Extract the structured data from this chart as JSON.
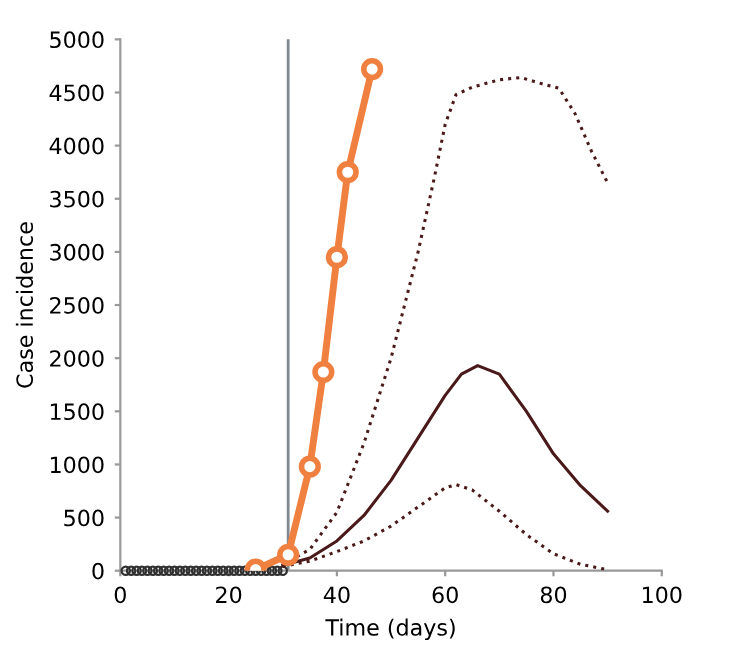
{
  "chart_data": {
    "type": "line",
    "xlabel": "Time (days)",
    "ylabel": "Case incidence",
    "xlim": [
      0,
      100
    ],
    "xticks": [
      0,
      20,
      40,
      60,
      80,
      100
    ],
    "ylim": [
      0,
      5000
    ],
    "yticks": [
      0,
      500,
      1000,
      1500,
      2000,
      2500,
      3000,
      3500,
      4000,
      4500,
      5000
    ],
    "grid": false,
    "legend": false,
    "ref_lines": [
      {
        "axis": "x",
        "value": 31,
        "color": "#808890",
        "line_style": "solid"
      }
    ],
    "series": [
      {
        "type": "scatter",
        "color": "#303030",
        "marker": "circle",
        "x": [
          1,
          2,
          3,
          4,
          5,
          6,
          7,
          8,
          9,
          10,
          11,
          12,
          13,
          14,
          15,
          16,
          17,
          18,
          19,
          20,
          21,
          22,
          23,
          24,
          25,
          26,
          27,
          28,
          29,
          30
        ],
        "values": [
          0,
          0,
          0,
          0,
          0,
          0,
          0,
          0,
          0,
          0,
          0,
          0,
          0,
          0,
          0,
          0,
          0,
          0,
          0,
          0,
          0,
          0,
          0,
          0,
          0,
          0,
          0,
          0,
          0,
          0
        ]
      },
      {
        "color": "#4a1a1a",
        "line_style": "solid",
        "marker": "none",
        "x": [
          30,
          35,
          40,
          45,
          50,
          55,
          60,
          63,
          66,
          70,
          75,
          80,
          85,
          90
        ],
        "values": [
          50,
          120,
          280,
          520,
          850,
          1250,
          1650,
          1850,
          1930,
          1850,
          1500,
          1100,
          800,
          560
        ]
      },
      {
        "color": "#4a1a1a",
        "line_style": "dotted",
        "marker": "none",
        "x": [
          30,
          35,
          40,
          45,
          50,
          55,
          58,
          60,
          62,
          65,
          70,
          74,
          78,
          81,
          84,
          87,
          90
        ],
        "values": [
          60,
          200,
          550,
          1200,
          2000,
          3000,
          3700,
          4200,
          4480,
          4550,
          4620,
          4640,
          4580,
          4540,
          4300,
          3950,
          3650
        ]
      },
      {
        "color": "#4a1a1a",
        "line_style": "dotted",
        "marker": "none",
        "x": [
          30,
          35,
          40,
          45,
          50,
          55,
          60,
          62,
          65,
          70,
          75,
          80,
          85,
          90
        ],
        "values": [
          40,
          90,
          180,
          280,
          420,
          600,
          780,
          810,
          760,
          560,
          340,
          160,
          60,
          10
        ]
      },
      {
        "color": "#f08040",
        "line_style": "solid",
        "marker": "circle",
        "x": [
          25,
          31,
          35,
          37.5,
          40,
          42,
          46.5
        ],
        "values": [
          10,
          150,
          980,
          1870,
          2950,
          3750,
          4720
        ]
      }
    ]
  }
}
